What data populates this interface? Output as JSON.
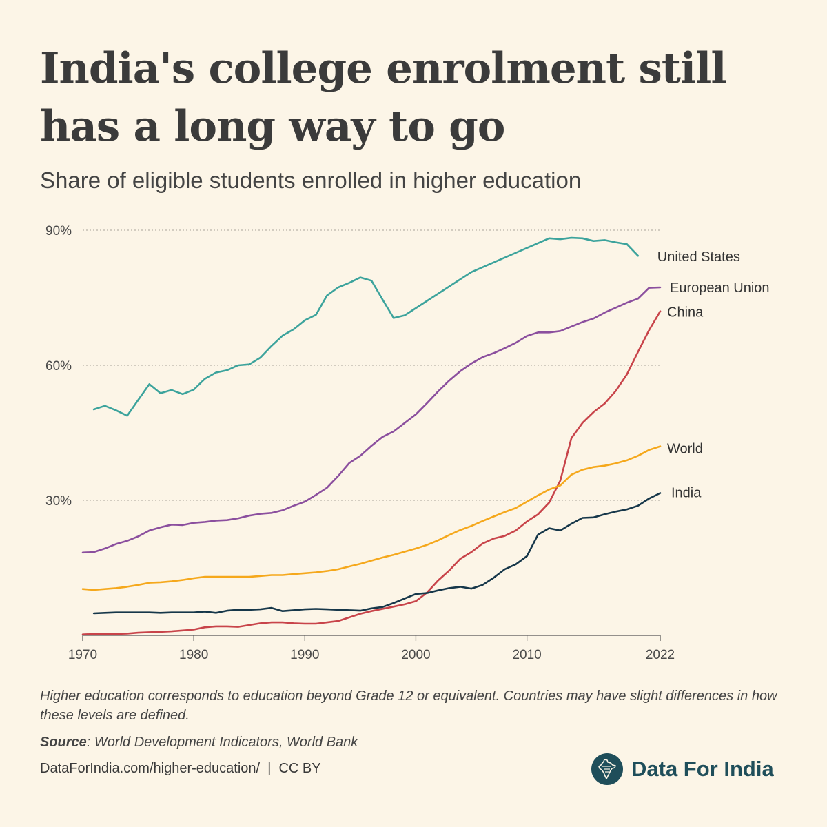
{
  "header": {
    "title": "India's college enrolment still has a long way to go",
    "subtitle": "Share of eligible students enrolled in higher education"
  },
  "footer": {
    "note": "Higher education corresponds to education beyond Grade 12 or equivalent. Countries may have slight differences in how these levels are defined.",
    "source_label": "Source",
    "source_text": ": World Development Indicators, World Bank",
    "link": "DataForIndia.com/higher-education/  |  CC BY",
    "brand": "Data For India",
    "brand_icon": "india-map-icon"
  },
  "chart_data": {
    "type": "line",
    "title": "India's college enrolment still has a long way to go",
    "subtitle": "Share of eligible students enrolled in higher education",
    "xlabel": "",
    "ylabel": "",
    "xlim": [
      1970,
      2022
    ],
    "ylim": [
      0,
      90
    ],
    "x_ticks": [
      1970,
      1980,
      1990,
      2000,
      2010,
      2022
    ],
    "y_ticks": [
      30,
      60,
      90
    ],
    "y_tick_labels": [
      "30%",
      "60%",
      "90%"
    ],
    "grid": "horizontal dotted",
    "legend": "direct labels at line ends",
    "series": [
      {
        "name": "United States",
        "color": "#3ca39c",
        "points": [
          [
            1971,
            50.2
          ],
          [
            1972,
            51.0
          ],
          [
            1973,
            50.0
          ],
          [
            1974,
            48.8
          ],
          [
            1975,
            52.3
          ],
          [
            1976,
            55.8
          ],
          [
            1977,
            53.8
          ],
          [
            1978,
            54.5
          ],
          [
            1979,
            53.6
          ],
          [
            1980,
            54.6
          ],
          [
            1981,
            57.0
          ],
          [
            1982,
            58.4
          ],
          [
            1983,
            58.9
          ],
          [
            1984,
            60.0
          ],
          [
            1985,
            60.2
          ],
          [
            1986,
            61.7
          ],
          [
            1987,
            64.3
          ],
          [
            1988,
            66.6
          ],
          [
            1989,
            68.0
          ],
          [
            1990,
            70.0
          ],
          [
            1991,
            71.2
          ],
          [
            1992,
            75.5
          ],
          [
            1993,
            77.3
          ],
          [
            1994,
            78.3
          ],
          [
            1995,
            79.5
          ],
          [
            1996,
            78.8
          ],
          [
            1997,
            74.6
          ],
          [
            1998,
            70.5
          ],
          [
            1999,
            71.1
          ],
          [
            2005,
            80.7
          ],
          [
            2012,
            88.2
          ],
          [
            2013,
            88.0
          ],
          [
            2014,
            88.3
          ],
          [
            2015,
            88.2
          ],
          [
            2016,
            87.6
          ],
          [
            2017,
            87.8
          ],
          [
            2018,
            87.3
          ],
          [
            2019,
            86.9
          ],
          [
            2020,
            84.3
          ]
        ]
      },
      {
        "name": "European Union",
        "color": "#8b4f9e",
        "points": [
          [
            1970,
            18.4
          ],
          [
            1971,
            18.5
          ],
          [
            1972,
            19.3
          ],
          [
            1973,
            20.3
          ],
          [
            1974,
            21.0
          ],
          [
            1975,
            22.0
          ],
          [
            1976,
            23.3
          ],
          [
            1977,
            24.0
          ],
          [
            1978,
            24.6
          ],
          [
            1979,
            24.5
          ],
          [
            1980,
            25.0
          ],
          [
            1981,
            25.2
          ],
          [
            1982,
            25.5
          ],
          [
            1983,
            25.6
          ],
          [
            1984,
            26.0
          ],
          [
            1985,
            26.6
          ],
          [
            1986,
            27.0
          ],
          [
            1987,
            27.2
          ],
          [
            1988,
            27.8
          ],
          [
            1989,
            28.8
          ],
          [
            1990,
            29.7
          ],
          [
            1991,
            31.2
          ],
          [
            1992,
            32.8
          ],
          [
            1993,
            35.4
          ],
          [
            1994,
            38.3
          ],
          [
            1995,
            39.9
          ],
          [
            1996,
            42.1
          ],
          [
            1997,
            44.1
          ],
          [
            1998,
            45.3
          ],
          [
            1999,
            47.2
          ],
          [
            2000,
            49.1
          ],
          [
            2001,
            51.6
          ],
          [
            2002,
            54.2
          ],
          [
            2003,
            56.6
          ],
          [
            2004,
            58.7
          ],
          [
            2005,
            60.4
          ],
          [
            2006,
            61.8
          ],
          [
            2007,
            62.7
          ],
          [
            2008,
            63.8
          ],
          [
            2009,
            65.0
          ],
          [
            2010,
            66.5
          ],
          [
            2011,
            67.3
          ],
          [
            2012,
            67.3
          ],
          [
            2013,
            67.6
          ],
          [
            2014,
            68.6
          ],
          [
            2015,
            69.6
          ],
          [
            2016,
            70.4
          ],
          [
            2017,
            71.7
          ],
          [
            2018,
            72.8
          ],
          [
            2019,
            73.9
          ],
          [
            2020,
            74.8
          ],
          [
            2021,
            77.2
          ],
          [
            2022,
            77.3
          ]
        ]
      },
      {
        "name": "China",
        "color": "#c8444a",
        "points": [
          [
            1970,
            0.2
          ],
          [
            1971,
            0.3
          ],
          [
            1972,
            0.3
          ],
          [
            1973,
            0.3
          ],
          [
            1974,
            0.4
          ],
          [
            1975,
            0.6
          ],
          [
            1976,
            0.7
          ],
          [
            1977,
            0.8
          ],
          [
            1978,
            0.9
          ],
          [
            1979,
            1.1
          ],
          [
            1980,
            1.3
          ],
          [
            1981,
            1.8
          ],
          [
            1982,
            2.0
          ],
          [
            1983,
            2.0
          ],
          [
            1984,
            1.9
          ],
          [
            1985,
            2.3
          ],
          [
            1986,
            2.7
          ],
          [
            1987,
            2.9
          ],
          [
            1988,
            2.9
          ],
          [
            1989,
            2.7
          ],
          [
            1990,
            2.6
          ],
          [
            1991,
            2.6
          ],
          [
            1992,
            2.9
          ],
          [
            1993,
            3.2
          ],
          [
            1994,
            4.0
          ],
          [
            1995,
            4.8
          ],
          [
            1996,
            5.4
          ],
          [
            1997,
            5.9
          ],
          [
            1998,
            6.4
          ],
          [
            1999,
            6.9
          ],
          [
            2000,
            7.6
          ],
          [
            2001,
            9.5
          ],
          [
            2002,
            12.2
          ],
          [
            2003,
            14.4
          ],
          [
            2004,
            17.0
          ],
          [
            2005,
            18.5
          ],
          [
            2006,
            20.4
          ],
          [
            2007,
            21.5
          ],
          [
            2008,
            22.1
          ],
          [
            2009,
            23.3
          ],
          [
            2010,
            25.3
          ],
          [
            2011,
            26.9
          ],
          [
            2012,
            29.5
          ],
          [
            2013,
            34.4
          ],
          [
            2014,
            43.8
          ],
          [
            2015,
            47.2
          ],
          [
            2016,
            49.6
          ],
          [
            2017,
            51.5
          ],
          [
            2018,
            54.3
          ],
          [
            2019,
            58.0
          ],
          [
            2020,
            63.0
          ],
          [
            2021,
            67.8
          ],
          [
            2022,
            72.0
          ]
        ]
      },
      {
        "name": "World",
        "color": "#f5a81c",
        "points": [
          [
            1970,
            10.3
          ],
          [
            1971,
            10.1
          ],
          [
            1972,
            10.3
          ],
          [
            1973,
            10.5
          ],
          [
            1974,
            10.8
          ],
          [
            1975,
            11.2
          ],
          [
            1976,
            11.7
          ],
          [
            1977,
            11.8
          ],
          [
            1978,
            12.0
          ],
          [
            1979,
            12.3
          ],
          [
            1980,
            12.7
          ],
          [
            1981,
            13.0
          ],
          [
            1982,
            13.0
          ],
          [
            1983,
            13.0
          ],
          [
            1984,
            13.0
          ],
          [
            1985,
            13.0
          ],
          [
            1986,
            13.2
          ],
          [
            1987,
            13.4
          ],
          [
            1988,
            13.4
          ],
          [
            1989,
            13.6
          ],
          [
            1990,
            13.8
          ],
          [
            1991,
            14.0
          ],
          [
            1992,
            14.3
          ],
          [
            1993,
            14.7
          ],
          [
            1994,
            15.3
          ],
          [
            1995,
            15.9
          ],
          [
            1996,
            16.6
          ],
          [
            1997,
            17.3
          ],
          [
            1998,
            17.9
          ],
          [
            1999,
            18.6
          ],
          [
            2000,
            19.3
          ],
          [
            2001,
            20.1
          ],
          [
            2002,
            21.1
          ],
          [
            2003,
            22.3
          ],
          [
            2004,
            23.4
          ],
          [
            2005,
            24.3
          ],
          [
            2006,
            25.4
          ],
          [
            2007,
            26.4
          ],
          [
            2008,
            27.4
          ],
          [
            2009,
            28.3
          ],
          [
            2010,
            29.7
          ],
          [
            2011,
            31.1
          ],
          [
            2012,
            32.4
          ],
          [
            2013,
            33.3
          ],
          [
            2014,
            35.7
          ],
          [
            2015,
            36.8
          ],
          [
            2016,
            37.4
          ],
          [
            2017,
            37.7
          ],
          [
            2018,
            38.2
          ],
          [
            2019,
            38.9
          ],
          [
            2020,
            39.9
          ],
          [
            2021,
            41.2
          ],
          [
            2022,
            42.0
          ]
        ]
      },
      {
        "name": "India",
        "color": "#16374a",
        "points": [
          [
            1971,
            4.9
          ],
          [
            1972,
            5.0
          ],
          [
            1973,
            5.1
          ],
          [
            1974,
            5.1
          ],
          [
            1975,
            5.1
          ],
          [
            1976,
            5.1
          ],
          [
            1977,
            5.0
          ],
          [
            1978,
            5.1
          ],
          [
            1979,
            5.1
          ],
          [
            1980,
            5.1
          ],
          [
            1981,
            5.3
          ],
          [
            1982,
            5.0
          ],
          [
            1983,
            5.5
          ],
          [
            1984,
            5.7
          ],
          [
            1985,
            5.7
          ],
          [
            1986,
            5.8
          ],
          [
            1987,
            6.1
          ],
          [
            1988,
            5.4
          ],
          [
            1989,
            5.6
          ],
          [
            1990,
            5.8
          ],
          [
            1991,
            5.9
          ],
          [
            1992,
            5.8
          ],
          [
            1993,
            5.7
          ],
          [
            1994,
            5.6
          ],
          [
            1995,
            5.5
          ],
          [
            1996,
            6.0
          ],
          [
            1997,
            6.3
          ],
          [
            1998,
            7.2
          ],
          [
            1999,
            8.2
          ],
          [
            2000,
            9.2
          ],
          [
            2001,
            9.4
          ],
          [
            2002,
            10.0
          ],
          [
            2003,
            10.5
          ],
          [
            2004,
            10.8
          ],
          [
            2005,
            10.4
          ],
          [
            2006,
            11.2
          ],
          [
            2007,
            12.8
          ],
          [
            2008,
            14.7
          ],
          [
            2009,
            15.8
          ],
          [
            2010,
            17.6
          ],
          [
            2011,
            22.4
          ],
          [
            2012,
            23.8
          ],
          [
            2013,
            23.3
          ],
          [
            2014,
            24.8
          ],
          [
            2015,
            26.1
          ],
          [
            2016,
            26.2
          ],
          [
            2017,
            26.9
          ],
          [
            2018,
            27.5
          ],
          [
            2019,
            28.0
          ],
          [
            2020,
            28.8
          ],
          [
            2021,
            30.4
          ],
          [
            2022,
            31.6
          ]
        ]
      }
    ]
  }
}
